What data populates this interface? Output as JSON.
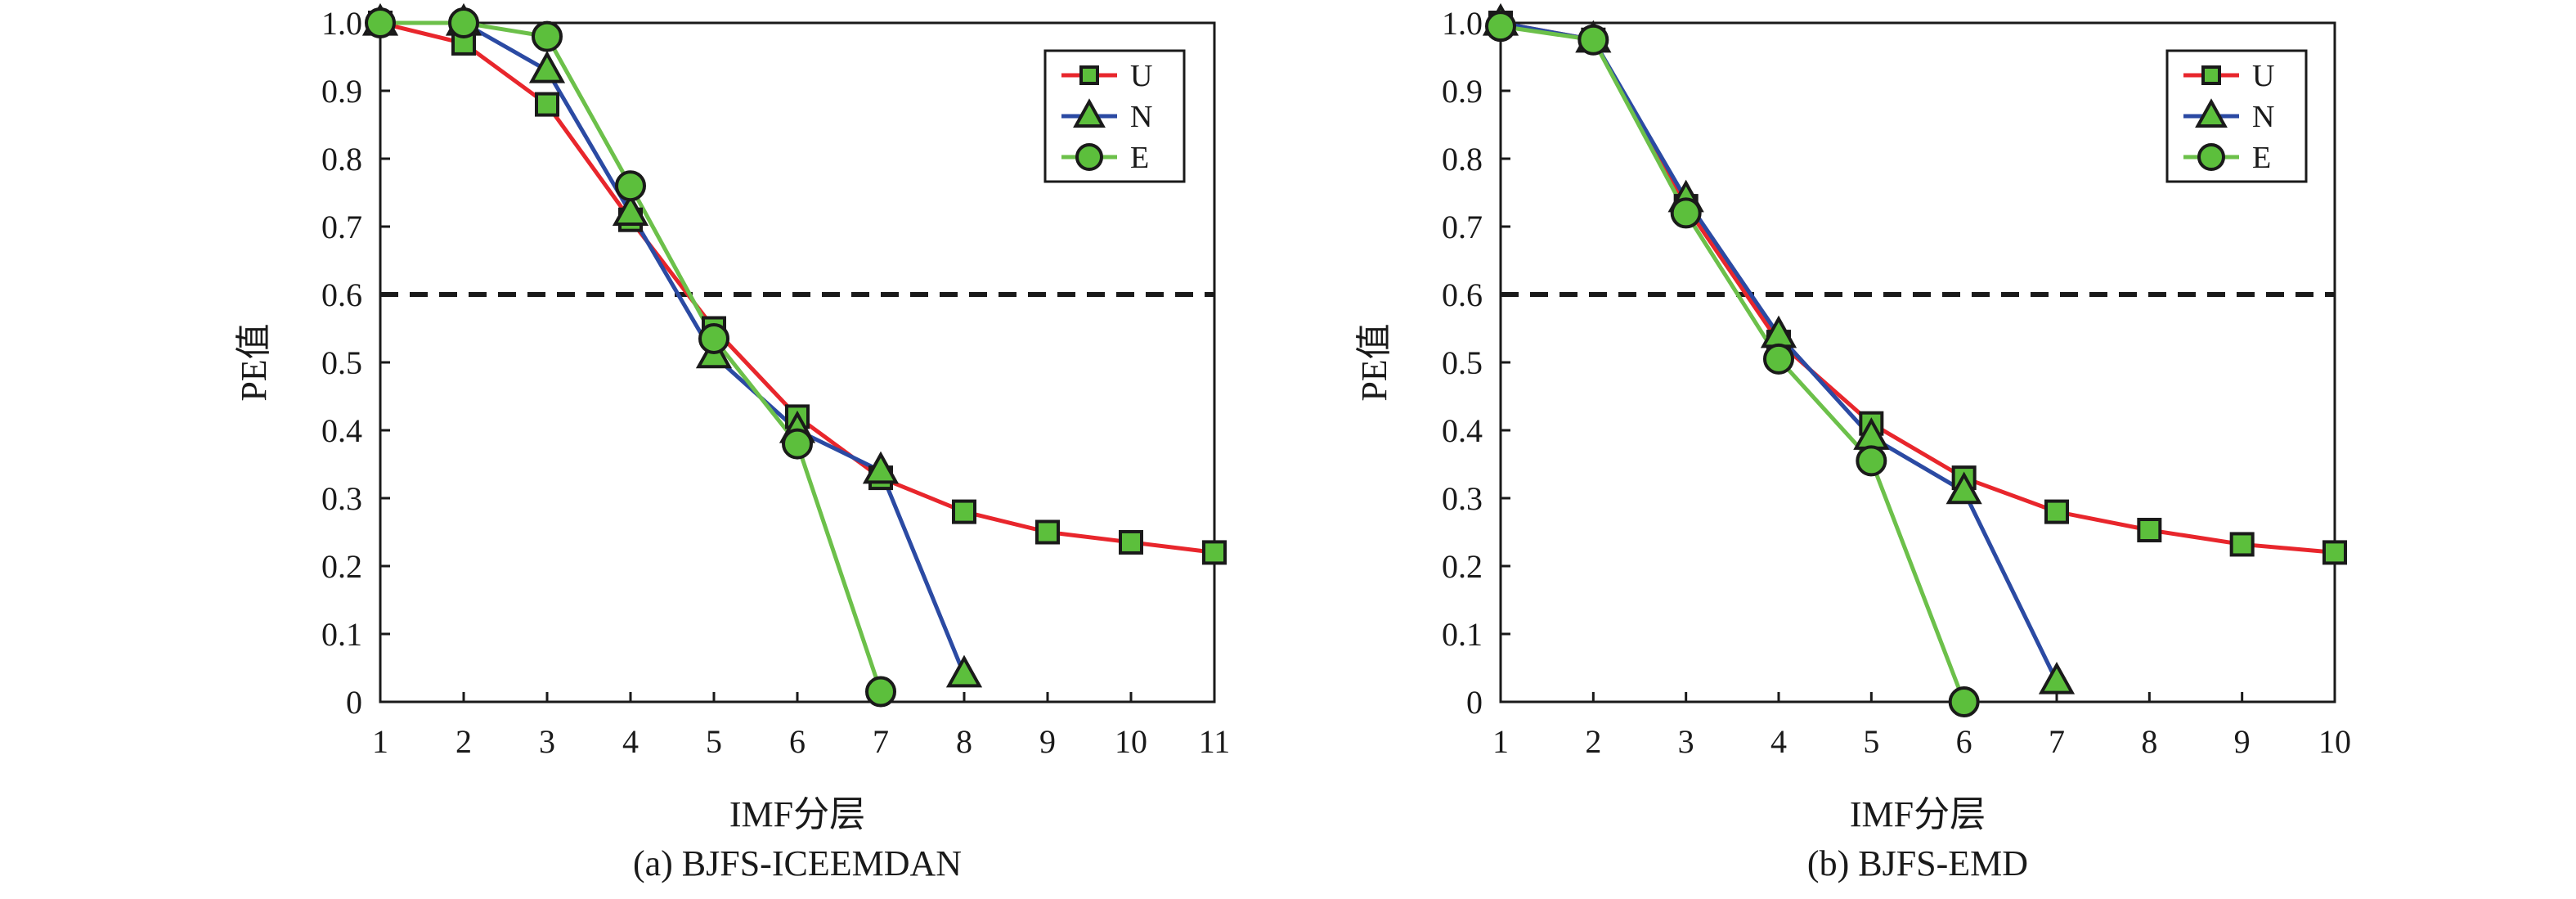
{
  "colors": {
    "U": "#e8262c",
    "N": "#2b4aa3",
    "E": "#6cc04a",
    "marker_fill": "#5cbf3c",
    "marker_stroke": "#1a1a1a",
    "threshold_line": "#1a1a1a"
  },
  "chart_data": [
    {
      "type": "line",
      "caption": "(a) BJFS-ICEEMDAN",
      "xlabel": "IMF分层",
      "ylabel": "PE值",
      "x_ticks": [
        "1",
        "2",
        "3",
        "4",
        "5",
        "6",
        "7",
        "8",
        "9",
        "10",
        "11"
      ],
      "y_ticks": [
        "0",
        "0.1",
        "0.2",
        "0.3",
        "0.4",
        "0.5",
        "0.6",
        "0.7",
        "0.8",
        "0.9",
        "1.0"
      ],
      "xlim": [
        1,
        11
      ],
      "ylim": [
        0,
        1.0
      ],
      "threshold": 0.6,
      "legend_position": "top-right",
      "series": [
        {
          "name": "U",
          "marker": "square",
          "x": [
            1,
            2,
            3,
            4,
            5,
            6,
            7,
            8,
            9,
            10,
            11
          ],
          "y": [
            1.0,
            0.97,
            0.88,
            0.71,
            0.55,
            0.42,
            0.33,
            0.28,
            0.25,
            0.235,
            0.22
          ]
        },
        {
          "name": "N",
          "marker": "triangle",
          "x": [
            1,
            2,
            3,
            4,
            5,
            6,
            7,
            8
          ],
          "y": [
            1.0,
            1.0,
            0.93,
            0.72,
            0.51,
            0.4,
            0.34,
            0.04
          ]
        },
        {
          "name": "E",
          "marker": "circle",
          "x": [
            1,
            2,
            3,
            4,
            5,
            6,
            7
          ],
          "y": [
            1.0,
            1.0,
            0.98,
            0.76,
            0.535,
            0.38,
            0.015
          ]
        }
      ]
    },
    {
      "type": "line",
      "caption": "(b) BJFS-EMD",
      "xlabel": "IMF分层",
      "ylabel": "PE值",
      "x_ticks": [
        "1",
        "2",
        "3",
        "4",
        "5",
        "6",
        "7",
        "8",
        "9",
        "10"
      ],
      "y_ticks": [
        "0",
        "0.1",
        "0.2",
        "0.3",
        "0.4",
        "0.5",
        "0.6",
        "0.7",
        "0.8",
        "0.9",
        "1.0"
      ],
      "xlim": [
        1,
        10
      ],
      "ylim": [
        0,
        1.0
      ],
      "threshold": 0.6,
      "legend_position": "top-right",
      "series": [
        {
          "name": "U",
          "marker": "square",
          "x": [
            1,
            2,
            3,
            4,
            5,
            6,
            7,
            8,
            9,
            10
          ],
          "y": [
            1.0,
            0.975,
            0.73,
            0.53,
            0.41,
            0.33,
            0.28,
            0.253,
            0.232,
            0.22
          ]
        },
        {
          "name": "N",
          "marker": "triangle",
          "x": [
            1,
            2,
            3,
            4,
            5,
            6,
            7
          ],
          "y": [
            1.0,
            0.975,
            0.74,
            0.54,
            0.39,
            0.31,
            0.03
          ]
        },
        {
          "name": "E",
          "marker": "circle",
          "x": [
            1,
            2,
            3,
            4,
            5,
            6
          ],
          "y": [
            0.995,
            0.975,
            0.72,
            0.505,
            0.355,
            0.0
          ]
        }
      ]
    }
  ]
}
